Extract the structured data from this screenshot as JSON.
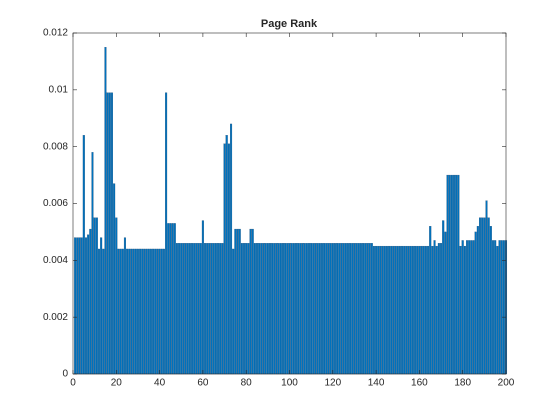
{
  "chart_data": {
    "type": "bar",
    "title": "Page Rank",
    "color": "#0072bd",
    "x": [
      1,
      2,
      3,
      4,
      5,
      6,
      7,
      8,
      9,
      10,
      11,
      12,
      13,
      14,
      15,
      16,
      17,
      18,
      19,
      20,
      21,
      22,
      23,
      24,
      25,
      26,
      27,
      28,
      29,
      30,
      31,
      32,
      33,
      34,
      35,
      36,
      37,
      38,
      39,
      40,
      41,
      42,
      43,
      44,
      45,
      46,
      47,
      48,
      49,
      50,
      51,
      52,
      53,
      54,
      55,
      56,
      57,
      58,
      59,
      60,
      61,
      62,
      63,
      64,
      65,
      66,
      67,
      68,
      69,
      70,
      71,
      72,
      73,
      74,
      75,
      76,
      77,
      78,
      79,
      80,
      81,
      82,
      83,
      84,
      85,
      86,
      87,
      88,
      89,
      90,
      91,
      92,
      93,
      94,
      95,
      96,
      97,
      98,
      99,
      100,
      101,
      102,
      103,
      104,
      105,
      106,
      107,
      108,
      109,
      110,
      111,
      112,
      113,
      114,
      115,
      116,
      117,
      118,
      119,
      120,
      121,
      122,
      123,
      124,
      125,
      126,
      127,
      128,
      129,
      130,
      131,
      132,
      133,
      134,
      135,
      136,
      137,
      138,
      139,
      140,
      141,
      142,
      143,
      144,
      145,
      146,
      147,
      148,
      149,
      150,
      151,
      152,
      153,
      154,
      155,
      156,
      157,
      158,
      159,
      160,
      161,
      162,
      163,
      164,
      165,
      166,
      167,
      168,
      169,
      170,
      171,
      172,
      173,
      174,
      175,
      176,
      177,
      178,
      179,
      180,
      181,
      182,
      183,
      184,
      185,
      186,
      187,
      188,
      189,
      190,
      191,
      192,
      193,
      194,
      195,
      196,
      197,
      198,
      199,
      200
    ],
    "values": [
      0.0048,
      0.0048,
      0.0048,
      0.0048,
      0.0084,
      0.0048,
      0.0049,
      0.0051,
      0.0078,
      0.0055,
      0.0055,
      0.0044,
      0.0048,
      0.0044,
      0.0115,
      0.0099,
      0.0099,
      0.0099,
      0.0067,
      0.0055,
      0.0044,
      0.0044,
      0.0044,
      0.0048,
      0.0044,
      0.0044,
      0.0044,
      0.0044,
      0.0044,
      0.0044,
      0.0044,
      0.0044,
      0.0044,
      0.0044,
      0.0044,
      0.0044,
      0.0044,
      0.0044,
      0.0044,
      0.0044,
      0.0044,
      0.0044,
      0.0099,
      0.0053,
      0.0053,
      0.0053,
      0.0053,
      0.0046,
      0.0046,
      0.0046,
      0.0046,
      0.0046,
      0.0046,
      0.0046,
      0.0046,
      0.0046,
      0.0046,
      0.0046,
      0.0046,
      0.0054,
      0.0046,
      0.0046,
      0.0046,
      0.0046,
      0.0046,
      0.0046,
      0.0046,
      0.0046,
      0.0046,
      0.0081,
      0.0084,
      0.0081,
      0.0088,
      0.0044,
      0.0051,
      0.0051,
      0.0051,
      0.0046,
      0.0046,
      0.0046,
      0.0046,
      0.0051,
      0.0051,
      0.0046,
      0.0046,
      0.0046,
      0.0046,
      0.0046,
      0.0046,
      0.0046,
      0.0046,
      0.0046,
      0.0046,
      0.0046,
      0.0046,
      0.0046,
      0.0046,
      0.0046,
      0.0046,
      0.0046,
      0.0046,
      0.0046,
      0.0046,
      0.0046,
      0.0046,
      0.0046,
      0.0046,
      0.0046,
      0.0046,
      0.0046,
      0.0046,
      0.0046,
      0.0046,
      0.0046,
      0.0046,
      0.0046,
      0.0046,
      0.0046,
      0.0046,
      0.0046,
      0.0046,
      0.0046,
      0.0046,
      0.0046,
      0.0046,
      0.0046,
      0.0046,
      0.0046,
      0.0046,
      0.0046,
      0.0046,
      0.0046,
      0.0046,
      0.0046,
      0.0046,
      0.0046,
      0.0046,
      0.0046,
      0.0045,
      0.0045,
      0.0045,
      0.0045,
      0.0045,
      0.0045,
      0.0045,
      0.0045,
      0.0045,
      0.0045,
      0.0045,
      0.0045,
      0.0045,
      0.0045,
      0.0045,
      0.0045,
      0.0045,
      0.0045,
      0.0045,
      0.0045,
      0.0045,
      0.0045,
      0.0045,
      0.0045,
      0.0045,
      0.0045,
      0.0052,
      0.0045,
      0.0047,
      0.0045,
      0.0046,
      0.0046,
      0.0054,
      0.005,
      0.007,
      0.007,
      0.007,
      0.007,
      0.007,
      0.007,
      0.0045,
      0.0047,
      0.0045,
      0.0047,
      0.0047,
      0.0047,
      0.0047,
      0.005,
      0.0052,
      0.0055,
      0.0055,
      0.0055,
      0.0061,
      0.0055,
      0.0052,
      0.0047,
      0.0047,
      0.0045,
      0.0047,
      0.0047,
      0.0047,
      0.0047
    ],
    "xlim": [
      0,
      200
    ],
    "xticks": [
      0,
      20,
      40,
      60,
      80,
      100,
      120,
      140,
      160,
      180,
      200
    ],
    "ylim": [
      0,
      0.012
    ],
    "yticks": [
      0,
      0.002,
      0.004,
      0.006,
      0.008,
      0.01,
      0.012
    ]
  }
}
